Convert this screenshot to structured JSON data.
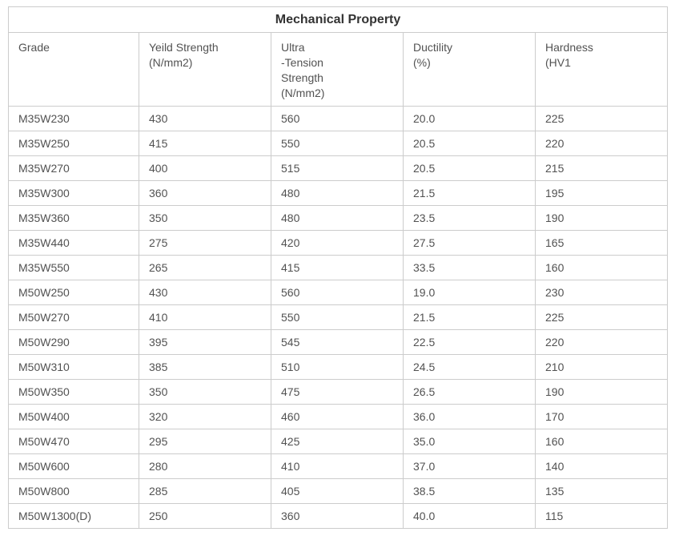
{
  "table": {
    "title": "Mechanical Property",
    "columns": [
      {
        "id": "grade",
        "label": "Grade"
      },
      {
        "id": "yield-strength",
        "label": "Yeild Strength\n(N/mm2)"
      },
      {
        "id": "ultra-tension-strength",
        "label": "Ultra\n-Tension\nStrength\n(N/mm2)"
      },
      {
        "id": "ductility",
        "label": "Ductility\n(%)"
      },
      {
        "id": "hardness",
        "label": "Hardness\n(HV1"
      }
    ],
    "rows": [
      [
        "M35W230",
        "430",
        "560",
        "20.0",
        "225"
      ],
      [
        "M35W250",
        "415",
        "550",
        "20.5",
        "220"
      ],
      [
        "M35W270",
        "400",
        "515",
        "20.5",
        "215"
      ],
      [
        "M35W300",
        "360",
        "480",
        "21.5",
        "195"
      ],
      [
        "M35W360",
        "350",
        "480",
        "23.5",
        "190"
      ],
      [
        "M35W440",
        "275",
        "420",
        "27.5",
        "165"
      ],
      [
        "M35W550",
        "265",
        "415",
        "33.5",
        "160"
      ],
      [
        "M50W250",
        "430",
        "560",
        "19.0",
        "230"
      ],
      [
        "M50W270",
        "410",
        "550",
        "21.5",
        "225"
      ],
      [
        "M50W290",
        "395",
        "545",
        "22.5",
        "220"
      ],
      [
        "M50W310",
        "385",
        "510",
        "24.5",
        "210"
      ],
      [
        "M50W350",
        "350",
        "475",
        "26.5",
        "190"
      ],
      [
        "M50W400",
        "320",
        "460",
        "36.0",
        "170"
      ],
      [
        "M50W470",
        "295",
        "425",
        "35.0",
        "160"
      ],
      [
        "M50W600",
        "280",
        "410",
        "37.0",
        "140"
      ],
      [
        "M50W800",
        "285",
        "405",
        "38.5",
        "135"
      ],
      [
        "M50W1300(D)",
        "250",
        "360",
        "40.0",
        "115"
      ]
    ],
    "colors": {
      "border": "#cccccc",
      "title_text": "#333333",
      "cell_text": "#525252",
      "background": "#ffffff"
    }
  }
}
